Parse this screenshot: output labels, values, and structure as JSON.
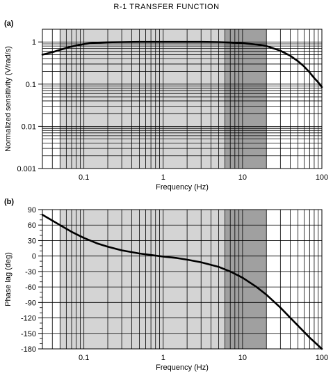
{
  "title": "R-1  TRANSFER  FUNCTION",
  "chart_data": [
    {
      "panel": "(a)",
      "type": "line",
      "xlabel": "Frequency  (Hz)",
      "ylabel": "Normalized sensitivity (V/rad/s)",
      "xscale": "log",
      "yscale": "log",
      "xlim": [
        0.03,
        100
      ],
      "ylim": [
        0.001,
        2
      ],
      "xticks": [
        {
          "v": 0.1,
          "label": "0.1"
        },
        {
          "v": 1,
          "label": "1"
        },
        {
          "v": 10,
          "label": "10"
        },
        {
          "v": 100,
          "label": "100"
        }
      ],
      "yticks": [
        {
          "v": 1,
          "label": "1"
        },
        {
          "v": 0.1,
          "label": "0.1"
        },
        {
          "v": 0.01,
          "label": "0.01"
        },
        {
          "v": 0.001,
          "label": "0.001"
        }
      ],
      "grid": true,
      "shaded_bands": [
        {
          "from": 0.05,
          "to": 6,
          "color": "#d4d4d4"
        },
        {
          "from": 6,
          "to": 20,
          "color": "#a0a0a0"
        }
      ],
      "series": [
        {
          "x": [
            0.03,
            0.04,
            0.05,
            0.06,
            0.07,
            0.08,
            0.1,
            0.12,
            0.15,
            0.2,
            0.3,
            0.5,
            1,
            2,
            3,
            5,
            7,
            10,
            15,
            20,
            30,
            40,
            50,
            60,
            70,
            80,
            90,
            100
          ],
          "values": [
            0.5,
            0.57,
            0.65,
            0.72,
            0.78,
            0.82,
            0.89,
            0.93,
            0.96,
            0.98,
            0.99,
            1.0,
            1.0,
            1.0,
            1.0,
            0.99,
            0.97,
            0.93,
            0.87,
            0.8,
            0.62,
            0.47,
            0.35,
            0.26,
            0.19,
            0.14,
            0.11,
            0.085
          ]
        }
      ]
    },
    {
      "panel": "(b)",
      "type": "line",
      "xlabel": "Frequency  (Hz)",
      "ylabel": "Phase lag (deg)",
      "xscale": "log",
      "yscale": "linear",
      "xlim": [
        0.03,
        100
      ],
      "ylim": [
        -180,
        90
      ],
      "xticks": [
        {
          "v": 0.1,
          "label": "0.1"
        },
        {
          "v": 1,
          "label": "1"
        },
        {
          "v": 10,
          "label": "10"
        },
        {
          "v": 100,
          "label": "100"
        }
      ],
      "yticks": [
        {
          "v": 90,
          "label": "90"
        },
        {
          "v": 60,
          "label": "60"
        },
        {
          "v": 30,
          "label": "30"
        },
        {
          "v": 0,
          "label": "0"
        },
        {
          "v": -30,
          "label": "-30"
        },
        {
          "v": -60,
          "label": "-60"
        },
        {
          "v": -90,
          "label": "-90"
        },
        {
          "v": -120,
          "label": "-120"
        },
        {
          "v": -150,
          "label": "-150"
        },
        {
          "v": -180,
          "label": "-180"
        }
      ],
      "grid": true,
      "shaded_bands": [
        {
          "from": 0.05,
          "to": 6,
          "color": "#d4d4d4"
        },
        {
          "from": 6,
          "to": 20,
          "color": "#a0a0a0"
        }
      ],
      "series": [
        {
          "x": [
            0.03,
            0.05,
            0.07,
            0.1,
            0.15,
            0.2,
            0.3,
            0.5,
            0.7,
            1,
            1.5,
            2,
            3,
            5,
            7,
            10,
            15,
            20,
            30,
            50,
            70,
            100
          ],
          "values": [
            80,
            60,
            47,
            35,
            24,
            18,
            11,
            5,
            2,
            -1,
            -4,
            -7,
            -12,
            -21,
            -30,
            -42,
            -60,
            -75,
            -100,
            -135,
            -158,
            -180
          ]
        }
      ]
    }
  ]
}
